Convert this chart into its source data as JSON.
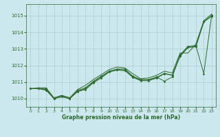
{
  "xlabel": "Graphe pression niveau de la mer (hPa)",
  "ylim": [
    1009.5,
    1015.7
  ],
  "xlim": [
    -0.5,
    23.5
  ],
  "yticks": [
    1010,
    1011,
    1012,
    1013,
    1014,
    1015
  ],
  "xticks": [
    0,
    1,
    2,
    3,
    4,
    5,
    6,
    7,
    8,
    9,
    10,
    11,
    12,
    13,
    14,
    15,
    16,
    17,
    18,
    19,
    20,
    21,
    22,
    23
  ],
  "bg_color": "#cce8ee",
  "grid_color": "#aacccc",
  "line_color": "#2d6a2d",
  "series_smooth": [
    1010.6,
    1010.65,
    1010.65,
    1010.05,
    1010.2,
    1010.05,
    1010.55,
    1010.8,
    1011.15,
    1011.45,
    1011.75,
    1011.9,
    1011.85,
    1011.5,
    1011.2,
    1011.25,
    1011.4,
    1011.65,
    1011.55,
    1012.75,
    1012.75,
    1013.3,
    1014.7,
    1015.1
  ],
  "series_marker1": [
    1010.6,
    1010.6,
    1010.6,
    1010.0,
    1010.15,
    1010.0,
    1010.5,
    1010.65,
    1011.05,
    1011.35,
    1011.65,
    1011.78,
    1011.78,
    1011.35,
    1011.15,
    1011.15,
    1011.3,
    1011.05,
    1011.3,
    1012.65,
    1013.15,
    1013.2,
    1011.5,
    1015.05
  ],
  "series_marker2": [
    1010.6,
    1010.6,
    1010.55,
    1010.0,
    1010.15,
    1010.0,
    1010.45,
    1010.6,
    1011.0,
    1011.3,
    1011.65,
    1011.75,
    1011.72,
    1011.32,
    1011.12,
    1011.12,
    1011.27,
    1011.52,
    1011.42,
    1012.6,
    1013.12,
    1013.15,
    1014.65,
    1015.0
  ],
  "series_marker3": [
    1010.6,
    1010.6,
    1010.5,
    1010.0,
    1010.1,
    1010.0,
    1010.42,
    1010.55,
    1010.95,
    1011.25,
    1011.6,
    1011.72,
    1011.68,
    1011.28,
    1011.08,
    1011.08,
    1011.23,
    1011.5,
    1011.4,
    1012.55,
    1013.08,
    1013.12,
    1014.62,
    1014.97
  ]
}
